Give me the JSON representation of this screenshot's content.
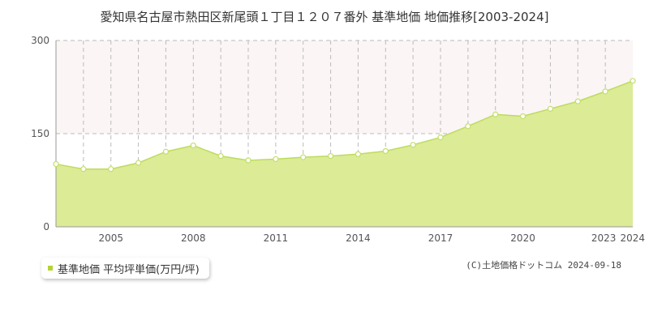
{
  "title": "愛知県名古屋市熱田区新尾頭１丁目１２０７番外 基準地価 地価推移[2003-2024]",
  "colors": {
    "fill": "#dceb96",
    "line": "#bcdc5e",
    "band": "#fbf5f5",
    "marker_face": "#ffffff",
    "marker_edge": "#c3de6a",
    "legend_swatch": "#b5d334",
    "axis": "#999999",
    "grid": "#bbbbbb"
  },
  "chart_data": {
    "type": "area",
    "x": [
      2003,
      2004,
      2005,
      2006,
      2007,
      2008,
      2009,
      2010,
      2011,
      2012,
      2013,
      2014,
      2015,
      2016,
      2017,
      2018,
      2019,
      2020,
      2021,
      2022,
      2023,
      2024
    ],
    "series": [
      {
        "name": "基準地価 平均坪単価(万円/坪)",
        "values": [
          101,
          93,
          93,
          103,
          121,
          131,
          114,
          107,
          109,
          112,
          114,
          117,
          122,
          132,
          144,
          162,
          181,
          178,
          190,
          202,
          218,
          235
        ]
      }
    ],
    "xlim": [
      2003,
      2024
    ],
    "ylim": [
      0,
      300
    ],
    "yticks": [
      0,
      150,
      300
    ],
    "xtick_labels": [
      "2005",
      "2008",
      "2011",
      "2014",
      "2017",
      "2020",
      "2023",
      "2024"
    ],
    "grid": true,
    "shaded_band": [
      150,
      300
    ],
    "legend_position": "bottom-left"
  },
  "copyright": "(C)土地価格ドットコム 2024-09-18"
}
